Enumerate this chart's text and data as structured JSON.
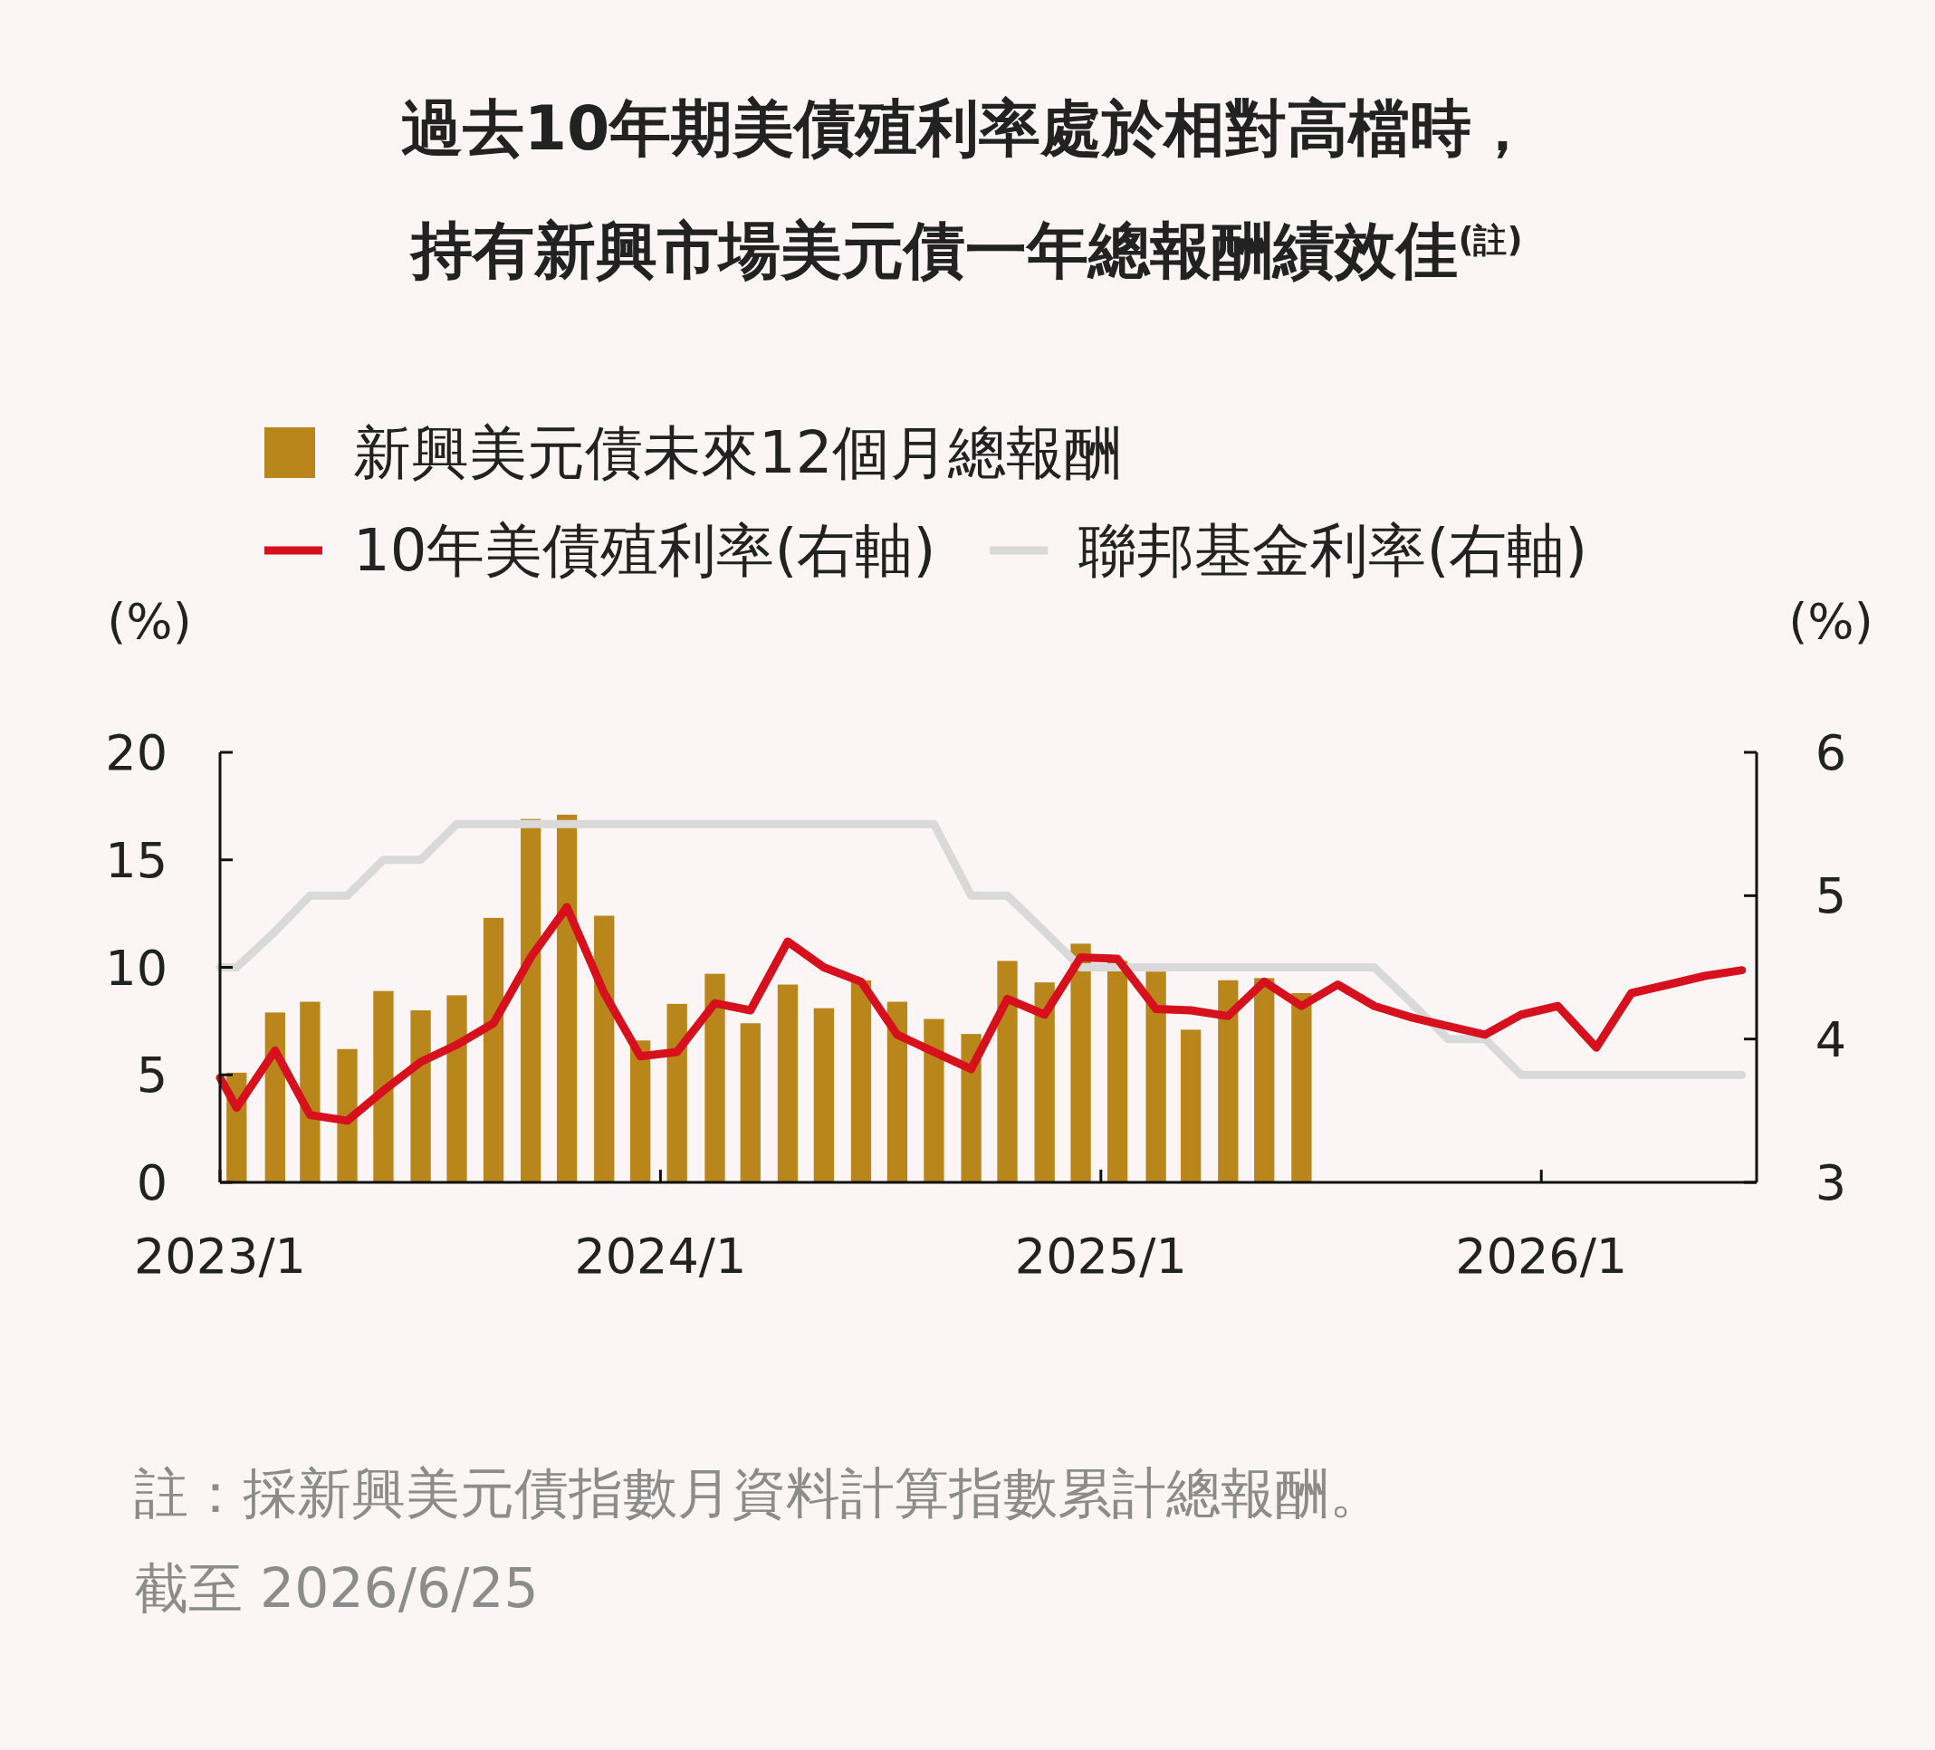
{
  "chart_data": {
    "type": "bar",
    "title": "過去10年期美債殖利率處於相對高檔時，",
    "subtitle": "持有新興市場美元債一年總報酬績效佳$^{(註)}$",
    "ylabel": "(%)",
    "y2label": "(%)",
    "xlim": [
      "2023-01-01",
      "2026-06-27"
    ],
    "xticks": [
      {
        "value": "2023-01-01",
        "label": "2023/1"
      },
      {
        "value": "2024-01-01",
        "label": "2024/1"
      },
      {
        "value": "2025-01-01",
        "label": "2025/1"
      },
      {
        "value": "2026-01-01",
        "label": "2026/1"
      }
    ],
    "ylim": [
      0,
      20
    ],
    "yticks": [
      0,
      5,
      10,
      15,
      20
    ],
    "y2lim": [
      3,
      6
    ],
    "y2ticks": [
      3,
      4,
      5,
      6
    ],
    "legend": "top",
    "grid": false,
    "series": [
      {
        "name": "新興美元債未來12個月總報酬",
        "color": "#b8861b",
        "x": [
          "2023-01-15",
          "2023-02-15",
          "2023-03-15",
          "2023-04-15",
          "2023-05-15",
          "2023-06-15",
          "2023-07-15",
          "2023-08-15",
          "2023-09-15",
          "2023-10-15",
          "2023-11-15",
          "2023-12-15",
          "2024-01-15",
          "2024-02-15",
          "2024-03-15",
          "2024-04-15",
          "2024-05-15",
          "2024-06-15",
          "2024-07-15",
          "2024-08-15",
          "2024-09-15",
          "2024-10-15",
          "2024-11-15",
          "2024-12-15",
          "2025-01-15",
          "2025-02-15",
          "2025-03-15",
          "2025-04-15",
          "2025-05-15",
          "2025-06-15"
        ],
        "values": [
          5.1,
          7.9,
          8.4,
          6.2,
          8.9,
          8.0,
          8.7,
          12.3,
          16.9,
          17.1,
          12.4,
          6.6,
          8.3,
          9.7,
          7.4,
          9.2,
          8.1,
          9.4,
          8.4,
          7.6,
          6.9,
          10.3,
          9.3,
          11.1,
          10.3,
          9.8,
          7.1,
          9.4,
          9.5,
          8.8
        ]
      },
      {
        "name": "10年美債殖利率(右軸)",
        "type": "line",
        "axis": "y2",
        "color": "#d7101e",
        "x": [
          "2023-01-01",
          "2023-01-15",
          "2023-02-15",
          "2023-03-15",
          "2023-04-15",
          "2023-05-15",
          "2023-06-15",
          "2023-07-15",
          "2023-08-15",
          "2023-09-15",
          "2023-10-15",
          "2023-11-15",
          "2023-12-15",
          "2024-01-15",
          "2024-02-15",
          "2024-03-15",
          "2024-04-15",
          "2024-05-15",
          "2024-06-15",
          "2024-07-15",
          "2024-08-15",
          "2024-09-15",
          "2024-10-15",
          "2024-11-15",
          "2024-12-15",
          "2025-01-15",
          "2025-02-15",
          "2025-03-15",
          "2025-04-15",
          "2025-05-15",
          "2025-06-15",
          "2025-07-15",
          "2025-08-15",
          "2025-09-15",
          "2025-10-15",
          "2025-11-15",
          "2025-12-15",
          "2026-01-15",
          "2026-02-15",
          "2026-03-15",
          "2026-04-15",
          "2026-05-15",
          "2026-06-15"
        ],
        "values": [
          3.73,
          3.52,
          3.92,
          3.47,
          3.43,
          3.64,
          3.84,
          3.96,
          4.11,
          4.57,
          4.92,
          4.32,
          3.88,
          3.91,
          4.25,
          4.2,
          4.68,
          4.5,
          4.4,
          4.03,
          3.91,
          3.79,
          4.28,
          4.17,
          4.57,
          4.56,
          4.21,
          4.2,
          4.16,
          4.4,
          4.23,
          4.38,
          4.23,
          4.15,
          4.09,
          4.03,
          4.17,
          4.23,
          3.94,
          4.32,
          4.38,
          4.44,
          4.48
        ]
      },
      {
        "name": "聯邦基金利率(右軸)",
        "type": "line",
        "axis": "y2",
        "color": "#d9d9d9",
        "x": [
          "2023-01-01",
          "2023-01-15",
          "2023-02-15",
          "2023-03-15",
          "2023-04-15",
          "2023-05-15",
          "2023-06-15",
          "2023-07-15",
          "2023-08-15",
          "2023-09-15",
          "2023-10-15",
          "2023-11-15",
          "2023-12-15",
          "2024-01-15",
          "2024-02-15",
          "2024-03-15",
          "2024-04-15",
          "2024-05-15",
          "2024-06-15",
          "2024-07-15",
          "2024-08-15",
          "2024-09-15",
          "2024-10-15",
          "2024-11-15",
          "2024-12-15",
          "2025-01-15",
          "2025-02-15",
          "2025-03-15",
          "2025-04-15",
          "2025-05-15",
          "2025-06-15",
          "2025-07-15",
          "2025-08-15",
          "2025-09-15",
          "2025-10-15",
          "2025-11-15",
          "2025-12-15",
          "2026-01-15",
          "2026-02-15",
          "2026-03-15",
          "2026-04-15",
          "2026-05-15",
          "2026-06-15"
        ],
        "values": [
          4.5,
          4.5,
          4.75,
          5.0,
          5.0,
          5.25,
          5.25,
          5.5,
          5.5,
          5.5,
          5.5,
          5.5,
          5.5,
          5.5,
          5.5,
          5.5,
          5.5,
          5.5,
          5.5,
          5.5,
          5.5,
          5.0,
          5.0,
          4.75,
          4.5,
          4.5,
          4.5,
          4.5,
          4.5,
          4.5,
          4.5,
          4.5,
          4.5,
          4.25,
          4.0,
          4.0,
          3.75,
          3.75,
          3.75,
          3.75,
          3.75,
          3.75,
          3.75
        ]
      }
    ],
    "annotations": [
      "註：採新興美元債指數月資料計算指數累計總報酬。",
      "截至 2026/6/25"
    ]
  }
}
